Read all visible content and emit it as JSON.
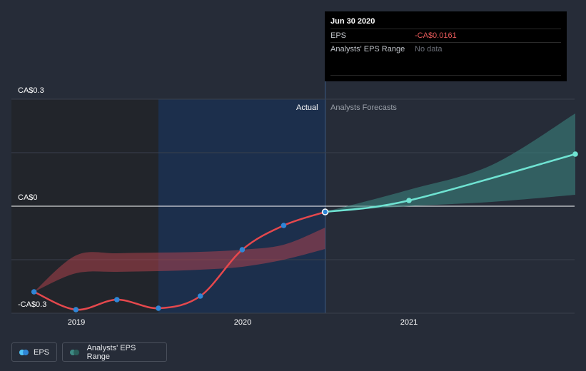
{
  "chart_data": {
    "type": "line",
    "y_axis_labels": [
      "CA$0.3",
      "CA$0",
      "-CA$0.3"
    ],
    "x_ticks": [
      "2019",
      "2020",
      "2021"
    ],
    "section_labels": {
      "actual": "Actual",
      "forecast": "Analysts Forecasts"
    },
    "ylim": [
      -0.3,
      0.3
    ],
    "grid": true,
    "series": [
      {
        "name": "EPS",
        "color": "#e5484d",
        "points": [
          {
            "x": "2018-09-30",
            "y": -0.24
          },
          {
            "x": "2018-12-31",
            "y": -0.29
          },
          {
            "x": "2019-03-31",
            "y": -0.262
          },
          {
            "x": "2019-06-30",
            "y": -0.286
          },
          {
            "x": "2019-09-30",
            "y": -0.252
          },
          {
            "x": "2019-12-31",
            "y": -0.122
          },
          {
            "x": "2020-03-31",
            "y": -0.054
          },
          {
            "x": "2020-06-30",
            "y": -0.0161
          }
        ]
      },
      {
        "name": "EPS forecast",
        "color": "#6fe3d2",
        "points": [
          {
            "x": "2020-06-30",
            "y": -0.0161
          },
          {
            "x": "2020-12-31",
            "y": 0.016
          },
          {
            "x": "2021-12-31",
            "y": 0.146
          }
        ]
      }
    ],
    "ranges": [
      {
        "name": "Analysts' EPS Range (past)",
        "color": "#b8434d",
        "x": [
          "2018-09-30",
          "2018-12-31",
          "2019-03-31",
          "2019-06-30",
          "2019-09-30",
          "2019-12-31",
          "2020-03-31",
          "2020-06-30"
        ],
        "low": [
          -0.24,
          -0.188,
          -0.184,
          -0.182,
          -0.178,
          -0.17,
          -0.15,
          -0.12
        ],
        "high": [
          -0.24,
          -0.138,
          -0.132,
          -0.13,
          -0.128,
          -0.122,
          -0.108,
          -0.06
        ]
      },
      {
        "name": "Analysts' EPS Range",
        "color": "#3d8a83",
        "x": [
          "2020-06-30",
          "2020-12-31",
          "2021-06-30",
          "2021-12-31"
        ],
        "low": [
          -0.0161,
          0.0,
          0.012,
          0.032
        ],
        "high": [
          -0.0161,
          0.046,
          0.115,
          0.26
        ]
      }
    ],
    "legend": [
      {
        "label": "EPS",
        "color": "#4fc3f7"
      },
      {
        "label": "Analysts' EPS Range",
        "color": "#3d8a83"
      }
    ]
  },
  "tooltip": {
    "date": "Jun 30 2020",
    "rows": [
      {
        "label": "EPS",
        "value": "-CA$0.0161"
      },
      {
        "label": "Analysts' EPS Range",
        "value": "No data"
      }
    ]
  },
  "colors": {
    "background": "#262c38",
    "actual_band": "#1c2f4c",
    "past_band": "#22252b",
    "marker": "#2f86d6"
  }
}
